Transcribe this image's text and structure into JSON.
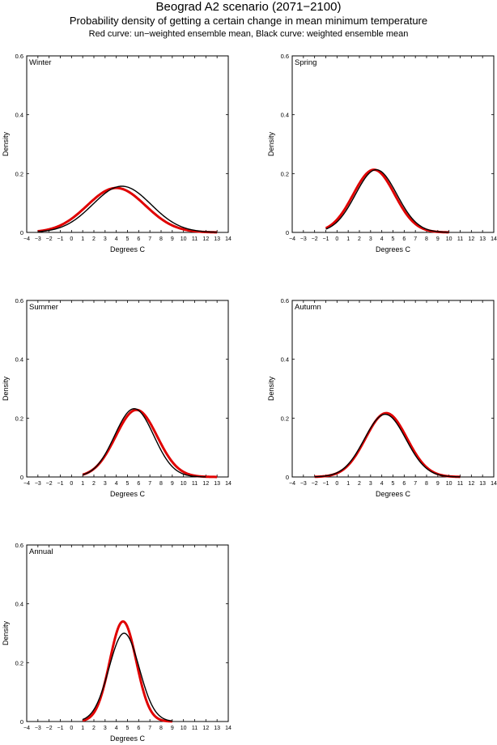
{
  "figure": {
    "title": "Beograd A2 scenario (2071−2100)",
    "subtitle": "Probability density of getting a certain change in mean minimum temperature",
    "note": "Red curve: un−weighted ensemble mean, Black curve: weighted ensemble mean",
    "colors": {
      "unweighted": "#e00000",
      "weighted": "#000000"
    }
  },
  "chart_data": [
    {
      "type": "line",
      "panel": "Winter",
      "xlabel": "Degrees C",
      "ylabel": "Density",
      "xlim": [
        -4,
        14
      ],
      "ylim": [
        0,
        0.6
      ],
      "xticks": [
        -4,
        -3,
        -2,
        -1,
        0,
        1,
        2,
        3,
        4,
        5,
        6,
        7,
        8,
        9,
        10,
        11,
        12,
        13,
        14
      ],
      "yticks": [
        0,
        0.2,
        0.4,
        0.6
      ],
      "series": [
        {
          "role": "unweighted",
          "color": "#e00000",
          "shape": "gaussian",
          "mean": 4.0,
          "peak": 0.151,
          "sd": 2.6,
          "x_range": [
            -3,
            13
          ]
        },
        {
          "role": "weighted",
          "color": "#000000",
          "shape": "gaussian",
          "mean": 4.5,
          "peak": 0.157,
          "sd": 2.6,
          "x_range": [
            -3,
            13
          ]
        }
      ]
    },
    {
      "type": "line",
      "panel": "Spring",
      "xlabel": "Degrees C",
      "ylabel": "Density",
      "xlim": [
        -4,
        14
      ],
      "ylim": [
        0,
        0.6
      ],
      "xticks": [
        -4,
        -3,
        -2,
        -1,
        0,
        1,
        2,
        3,
        4,
        5,
        6,
        7,
        8,
        9,
        10,
        11,
        12,
        13,
        14
      ],
      "yticks": [
        0,
        0.2,
        0.4,
        0.6
      ],
      "series": [
        {
          "role": "unweighted",
          "color": "#e00000",
          "shape": "gaussian",
          "mean": 3.3,
          "peak": 0.213,
          "sd": 1.85,
          "x_range": [
            -1,
            10
          ]
        },
        {
          "role": "weighted",
          "color": "#000000",
          "shape": "gaussian",
          "mean": 3.5,
          "peak": 0.213,
          "sd": 1.85,
          "x_range": [
            -1,
            10
          ]
        }
      ]
    },
    {
      "type": "line",
      "panel": "Summer",
      "xlabel": "Degrees C",
      "ylabel": "Density",
      "xlim": [
        -4,
        14
      ],
      "ylim": [
        0,
        0.6
      ],
      "xticks": [
        -4,
        -3,
        -2,
        -1,
        0,
        1,
        2,
        3,
        4,
        5,
        6,
        7,
        8,
        9,
        10,
        11,
        12,
        13,
        14
      ],
      "yticks": [
        0,
        0.2,
        0.4,
        0.6
      ],
      "series": [
        {
          "role": "unweighted",
          "color": "#e00000",
          "shape": "gaussian",
          "mean": 5.8,
          "peak": 0.228,
          "sd": 1.85,
          "x_range": [
            1,
            13
          ]
        },
        {
          "role": "weighted",
          "color": "#000000",
          "shape": "gaussian",
          "mean": 5.6,
          "peak": 0.232,
          "sd": 1.75,
          "x_range": [
            1,
            12
          ]
        }
      ]
    },
    {
      "type": "line",
      "panel": "Autumn",
      "xlabel": "Degrees C",
      "ylabel": "Density",
      "xlim": [
        -4,
        14
      ],
      "ylim": [
        0,
        0.6
      ],
      "xticks": [
        -4,
        -3,
        -2,
        -1,
        0,
        1,
        2,
        3,
        4,
        5,
        6,
        7,
        8,
        9,
        10,
        11,
        12,
        13,
        14
      ],
      "yticks": [
        0,
        0.2,
        0.4,
        0.6
      ],
      "series": [
        {
          "role": "unweighted",
          "color": "#e00000",
          "shape": "gaussian",
          "mean": 4.4,
          "peak": 0.217,
          "sd": 1.85,
          "x_range": [
            -2,
            11
          ]
        },
        {
          "role": "weighted",
          "color": "#000000",
          "shape": "gaussian",
          "mean": 4.3,
          "peak": 0.213,
          "sd": 1.85,
          "x_range": [
            -2,
            11
          ]
        }
      ]
    },
    {
      "type": "line",
      "panel": "Annual",
      "xlabel": "Degrees C",
      "ylabel": "Density",
      "xlim": [
        -4,
        14
      ],
      "ylim": [
        0,
        0.6
      ],
      "xticks": [
        -4,
        -3,
        -2,
        -1,
        0,
        1,
        2,
        3,
        4,
        5,
        6,
        7,
        8,
        9,
        10,
        11,
        12,
        13,
        14
      ],
      "yticks": [
        0,
        0.2,
        0.4,
        0.6
      ],
      "series": [
        {
          "role": "unweighted",
          "color": "#e00000",
          "shape": "gaussian",
          "mean": 4.6,
          "peak": 0.34,
          "sd": 1.18,
          "x_range": [
            1,
            9
          ]
        },
        {
          "role": "weighted",
          "color": "#000000",
          "shape": "gaussian",
          "mean": 4.7,
          "peak": 0.3,
          "sd": 1.35,
          "x_range": [
            1,
            9
          ]
        }
      ]
    }
  ]
}
